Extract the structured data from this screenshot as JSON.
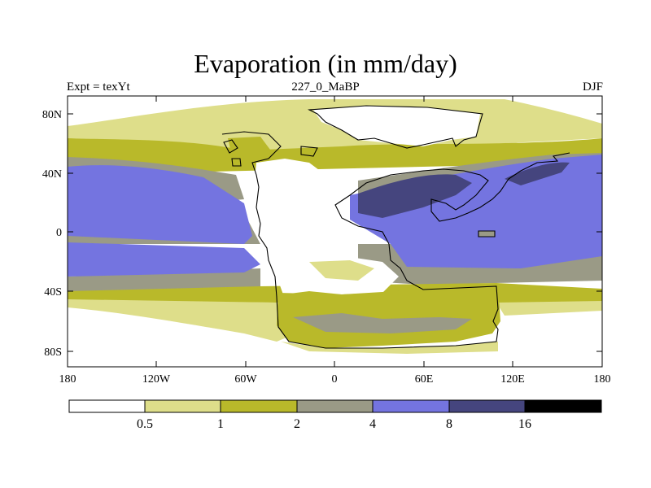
{
  "title": "Evaporation (in mm/day)",
  "subtitle_left": "Expt = texYt",
  "subtitle_center": "227_0_MaBP",
  "subtitle_right": "DJF",
  "axes": {
    "x_ticks": [
      "180",
      "120W",
      "60W",
      "0",
      "60E",
      "120E",
      "180"
    ],
    "y_ticks": [
      "80N",
      "40N",
      "0",
      "40S",
      "80S"
    ]
  },
  "colorbar": {
    "labels": [
      "0.5",
      "1",
      "2",
      "4",
      "8",
      "16"
    ],
    "colors": [
      "#ffffff",
      "#dede8a",
      "#b9b92a",
      "#9a9a86",
      "#7474e0",
      "#45457e",
      "#000000"
    ]
  },
  "palette": {
    "white": "#ffffff",
    "light_yellow": "#dede8a",
    "olive": "#b9b92a",
    "gray": "#9a9a86",
    "blue": "#7474e0",
    "dark_blue": "#45457e"
  }
}
